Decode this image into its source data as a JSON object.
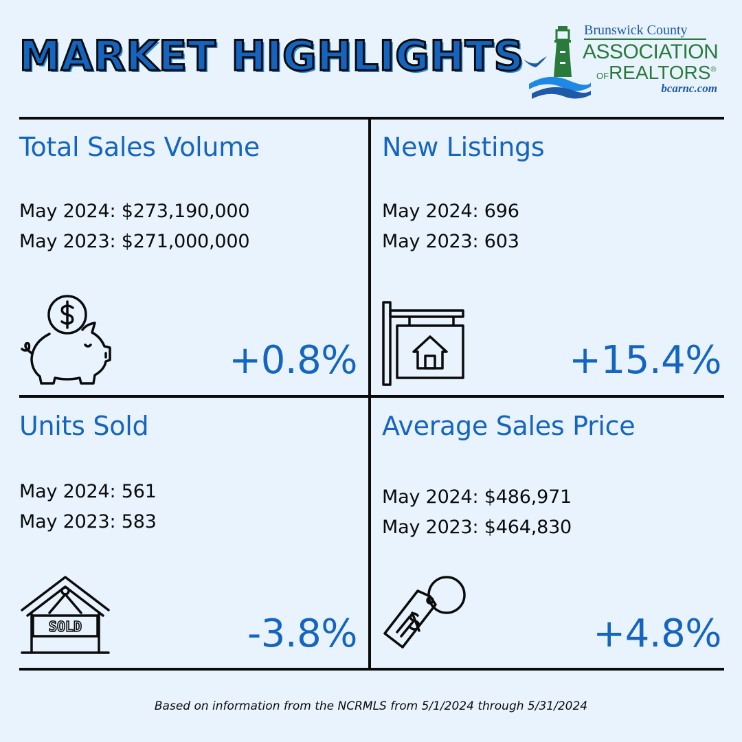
{
  "header": {
    "title": "MARKET HIGHLIGHTS",
    "logo": {
      "line1": "Brunswick County",
      "line2": "ASSOCIATION",
      "line3_of": "OF",
      "line3_realtors": "REALTORS",
      "line3_reg": "®",
      "url": "bcarnc.com"
    }
  },
  "panels": {
    "total_sales_volume": {
      "title": "Total Sales Volume",
      "current": "May 2024: $273,190,000",
      "previous": "May 2023: $271,000,000",
      "change": "+0.8%",
      "icon": "piggy-bank-icon"
    },
    "new_listings": {
      "title": "New Listings",
      "current": "May 2024: 696",
      "previous": "May 2023: 603",
      "change": "+15.4%",
      "icon": "house-sign-icon"
    },
    "units_sold": {
      "title": "Units Sold",
      "current": "May 2024: 561",
      "previous": "May 2023: 583",
      "change": "-3.8%",
      "icon": "sold-house-icon",
      "icon_label": "SOLD"
    },
    "average_sales_price": {
      "title": "Average Sales Price",
      "current": "May 2024: $486,971",
      "previous": "May 2023: $464,830",
      "change": "+4.8%",
      "icon": "price-tag-icon"
    }
  },
  "footer": "Based on information from the NCRMLS from 5/1/2024 through 5/31/2024",
  "colors": {
    "background": "#e8f3fd",
    "accent_blue": "#1565c0",
    "logo_green": "#2a7a3b",
    "text": "#0b0b0b"
  }
}
